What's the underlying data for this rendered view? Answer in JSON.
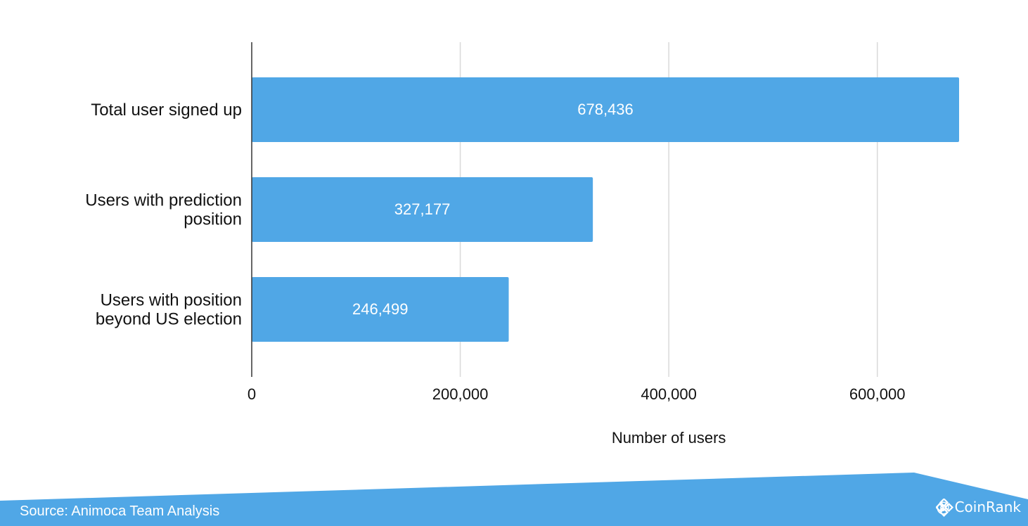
{
  "chart_data": {
    "type": "bar",
    "orientation": "horizontal",
    "categories": [
      [
        "Total user signed up"
      ],
      [
        "Users with prediction",
        "position"
      ],
      [
        "Users with position",
        "beyond US election"
      ]
    ],
    "values": [
      678436,
      327177,
      246499
    ],
    "data_labels": [
      "678,436",
      "327,177",
      "246,499"
    ],
    "xlabel": "Number of users",
    "xlim": [
      0,
      678436
    ],
    "ticks": [
      0,
      200000,
      400000,
      600000
    ],
    "tick_labels": [
      "0",
      "200,000",
      "400,000",
      "600,000"
    ],
    "grid": true,
    "bar_color": "#50a7e6"
  },
  "footer": {
    "source": "Source: Animoca Team Analysis",
    "brand": "@ CoinRank",
    "brand_icon": "coinrank-diamond-icon",
    "banner_color": "#50a7e6"
  }
}
